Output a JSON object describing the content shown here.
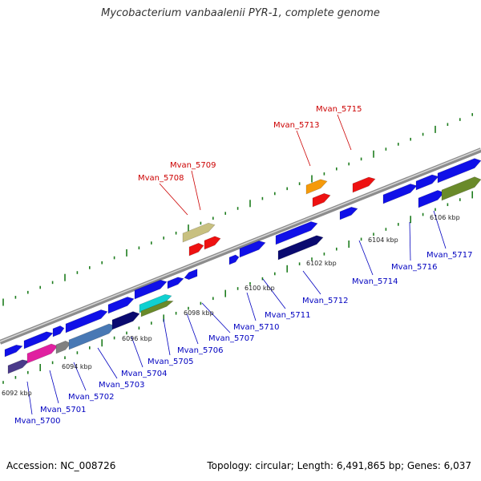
{
  "title": "Mycobacterium vanbaalenii PYR-1, complete genome",
  "footer": {
    "accession": "Accession: NC_008726",
    "summary": "Topology: circular; Length: 6,491,865 bp; Genes: 6,037"
  },
  "colors": {
    "backbone": "#8c8c8c",
    "backbone_highlight": "#d6d6d6",
    "tick": "#1e7d1e",
    "label_blue": "#0000c0",
    "label_red": "#cc0000",
    "blue": "#1010e8",
    "red": "#ee1111",
    "orange": "#f59a0a",
    "khaki": "#c8c080",
    "navy": "#0a0a70",
    "steel": "#4878b4",
    "magenta": "#e020a0",
    "gray": "#808080",
    "purple": "#4a3a8a",
    "olive": "#6a8a2a",
    "cyan": "#10d0d0"
  },
  "scale_labels": [
    "6092 kbp",
    "6094 kbp",
    "6096 kbp",
    "6098 kbp",
    "6100 kbp",
    "6102 kbp",
    "6104 kbp",
    "6106 kbp"
  ],
  "gene_labels": [
    {
      "id": "Mvan_5700",
      "color": "blue"
    },
    {
      "id": "Mvan_5701",
      "color": "blue"
    },
    {
      "id": "Mvan_5702",
      "color": "blue"
    },
    {
      "id": "Mvan_5703",
      "color": "blue"
    },
    {
      "id": "Mvan_5704",
      "color": "blue"
    },
    {
      "id": "Mvan_5705",
      "color": "blue"
    },
    {
      "id": "Mvan_5706",
      "color": "blue"
    },
    {
      "id": "Mvan_5707",
      "color": "blue"
    },
    {
      "id": "Mvan_5708",
      "color": "red"
    },
    {
      "id": "Mvan_5709",
      "color": "red"
    },
    {
      "id": "Mvan_5710",
      "color": "blue"
    },
    {
      "id": "Mvan_5711",
      "color": "blue"
    },
    {
      "id": "Mvan_5712",
      "color": "blue"
    },
    {
      "id": "Mvan_5713",
      "color": "red"
    },
    {
      "id": "Mvan_5714",
      "color": "blue"
    },
    {
      "id": "Mvan_5715",
      "color": "red"
    },
    {
      "id": "Mvan_5716",
      "color": "blue"
    },
    {
      "id": "Mvan_5717",
      "color": "blue"
    }
  ]
}
